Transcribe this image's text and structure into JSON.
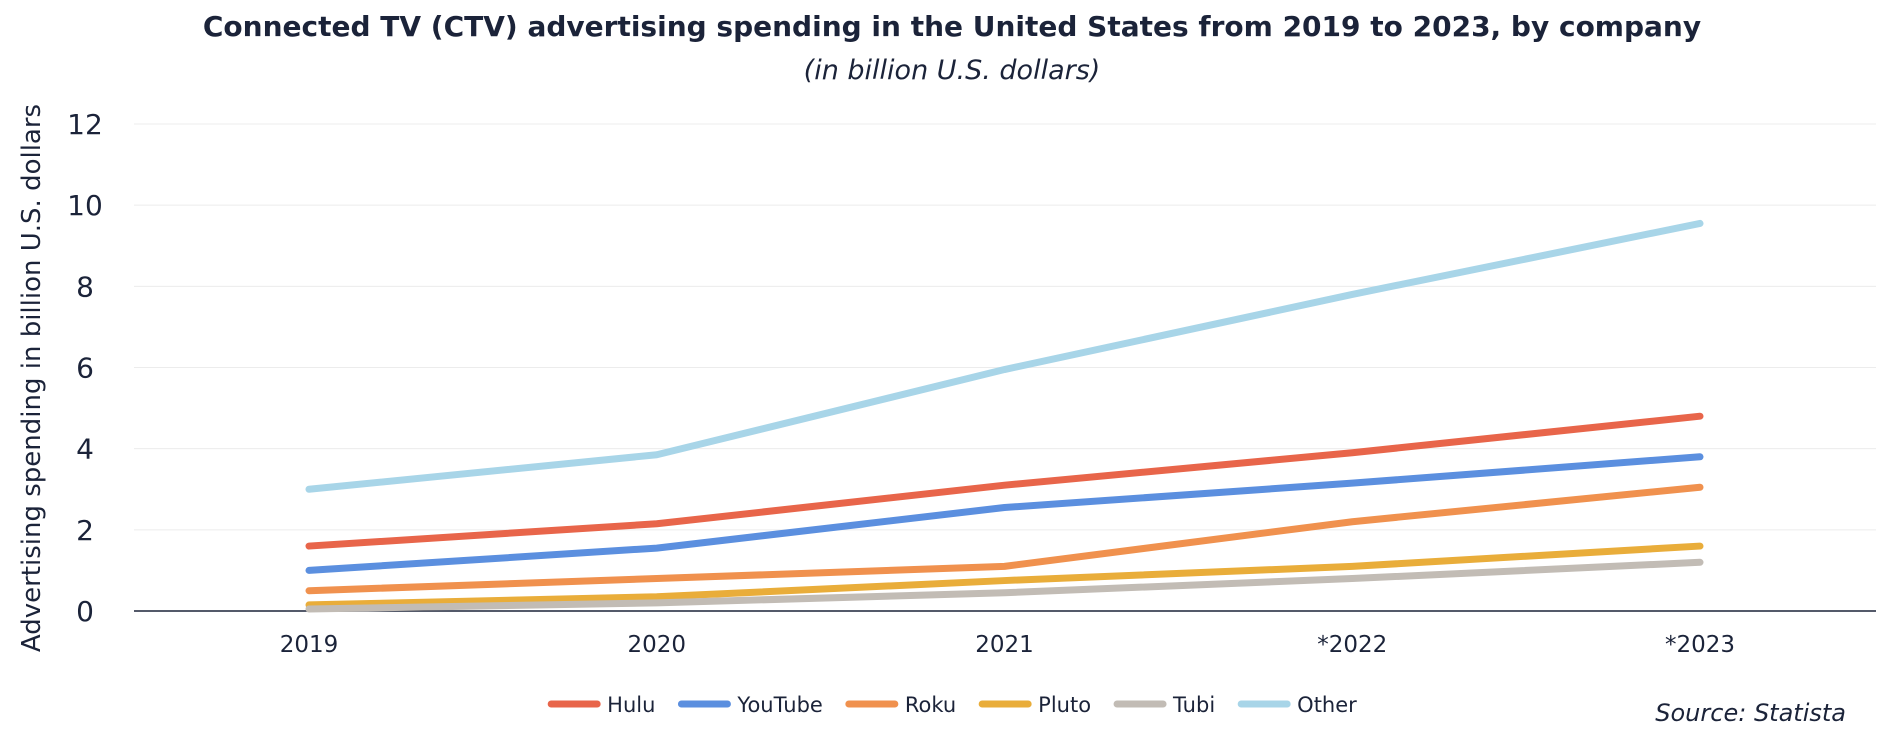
{
  "chart_data": {
    "type": "line",
    "title": "Connected TV (CTV) advertising spending in the United States from 2019 to 2023, by company",
    "subtitle": "(in billion U.S. dollars)",
    "xlabel": "",
    "ylabel": "Advertising spending in billion U.S. dollars",
    "categories": [
      "2019",
      "2020",
      "2021",
      "*2022",
      "*2023"
    ],
    "ylim": [
      0,
      12
    ],
    "yticks": [
      0,
      2,
      4,
      6,
      8,
      10,
      12
    ],
    "grid": true,
    "legend_position": "bottom",
    "series": [
      {
        "name": "Hulu",
        "color": "#e8654a",
        "values": [
          1.6,
          2.15,
          3.1,
          3.9,
          4.8
        ]
      },
      {
        "name": "YouTube",
        "color": "#5b8fdf",
        "values": [
          1.0,
          1.55,
          2.55,
          3.15,
          3.8
        ]
      },
      {
        "name": "Roku",
        "color": "#f0914e",
        "values": [
          0.5,
          0.8,
          1.1,
          2.2,
          3.05
        ]
      },
      {
        "name": "Pluto",
        "color": "#e9ad3a",
        "values": [
          0.15,
          0.35,
          0.75,
          1.1,
          1.6
        ]
      },
      {
        "name": "Tubi",
        "color": "#c2bcb5",
        "values": [
          0.05,
          0.2,
          0.45,
          0.8,
          1.2
        ]
      },
      {
        "name": "Other",
        "color": "#a8d5e8",
        "values": [
          3.0,
          3.85,
          5.95,
          7.8,
          9.55
        ]
      }
    ],
    "source": "Source: Statista"
  }
}
